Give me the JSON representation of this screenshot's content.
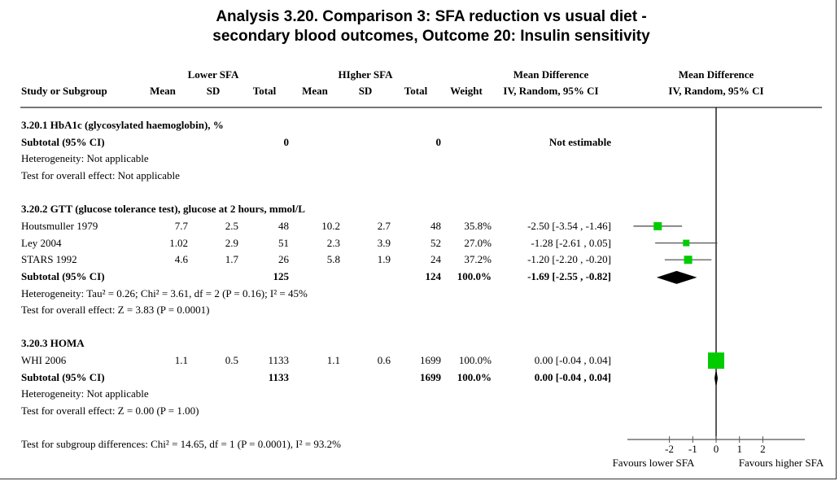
{
  "title": {
    "line1": "Analysis 3.20.   Comparison 3: SFA reduction vs usual diet -",
    "line2": "secondary blood outcomes, Outcome 20: Insulin sensitivity"
  },
  "header": {
    "group_lower": "Lower SFA",
    "group_higher": "HIgher SFA",
    "md_left": "Mean Difference",
    "md_right": "Mean Difference",
    "study": "Study or Subgroup",
    "mean1": "Mean",
    "sd1": "SD",
    "total1": "Total",
    "mean2": "Mean",
    "sd2": "SD",
    "total2": "Total",
    "weight": "Weight",
    "ci_left": "IV, Random, 95% CI",
    "ci_right": "IV, Random, 95% CI"
  },
  "rows": [
    {
      "type": "group",
      "study": "3.20.1 HbA1c (glycosylated haemoglobin), %"
    },
    {
      "type": "subtotal",
      "study": "Subtotal (95% CI)",
      "ln": "0",
      "hn": "0",
      "ci": "Not estimable"
    },
    {
      "type": "note",
      "study": "Heterogeneity: Not applicable"
    },
    {
      "type": "note",
      "study": "Test for overall effect: Not applicable"
    },
    {
      "type": "blank"
    },
    {
      "type": "group",
      "study": "3.20.2 GTT (glucose tolerance test), glucose at 2 hours, mmol/L"
    },
    {
      "type": "study",
      "study": "Houtsmuller 1979",
      "lm": "7.7",
      "lsd": "2.5",
      "ln": "48",
      "hm": "10.2",
      "hsd": "2.7",
      "hn": "48",
      "weight": "35.8%",
      "ci": "-2.50 [-3.54 , -1.46]"
    },
    {
      "type": "study",
      "study": "Ley 2004",
      "lm": "1.02",
      "lsd": "2.9",
      "ln": "51",
      "hm": "2.3",
      "hsd": "3.9",
      "hn": "52",
      "weight": "27.0%",
      "ci": "-1.28 [-2.61 , 0.05]"
    },
    {
      "type": "study",
      "study": "STARS 1992",
      "lm": "4.6",
      "lsd": "1.7",
      "ln": "26",
      "hm": "5.8",
      "hsd": "1.9",
      "hn": "24",
      "weight": "37.2%",
      "ci": "-1.20 [-2.20 , -0.20]"
    },
    {
      "type": "subtotal",
      "study": "Subtotal (95% CI)",
      "ln": "125",
      "hn": "124",
      "weight": "100.0%",
      "ci": "-1.69 [-2.55 , -0.82]"
    },
    {
      "type": "note",
      "study": "Heterogeneity: Tau² = 0.26; Chi² = 3.61, df = 2 (P = 0.16); I² = 45%"
    },
    {
      "type": "note",
      "study": "Test for overall effect: Z = 3.83 (P = 0.0001)"
    },
    {
      "type": "blank"
    },
    {
      "type": "group",
      "study": "3.20.3 HOMA"
    },
    {
      "type": "study",
      "study": "WHI 2006",
      "lm": "1.1",
      "lsd": "0.5",
      "ln": "1133",
      "hm": "1.1",
      "hsd": "0.6",
      "hn": "1699",
      "weight": "100.0%",
      "ci": "0.00 [-0.04 , 0.04]"
    },
    {
      "type": "subtotal",
      "study": "Subtotal (95% CI)",
      "ln": "1133",
      "hn": "1699",
      "weight": "100.0%",
      "ci": "0.00 [-0.04 , 0.04]"
    },
    {
      "type": "note",
      "study": "Heterogeneity: Not applicable"
    },
    {
      "type": "note",
      "study": "Test for overall effect: Z = 0.00 (P = 1.00)"
    },
    {
      "type": "blank"
    },
    {
      "type": "note",
      "study": "Test for subgroup differences: Chi² = 14.65, df = 1 (P = 0.0001), I² = 93.2%"
    }
  ],
  "chart_data": {
    "type": "forest",
    "xlim": [
      -3.8,
      3.8
    ],
    "xticks": [
      "-2",
      "-1",
      "0",
      "1",
      "2"
    ],
    "xtick_values": [
      -2,
      -1,
      0,
      1,
      2
    ],
    "xlabel_left": "Favours lower SFA",
    "xlabel_right": "Favours higher SFA",
    "colors": {
      "study": "#00cc00",
      "diamond": "#000000"
    },
    "points": [
      {
        "study": "Houtsmuller 1979",
        "md": -2.5,
        "lo": -3.54,
        "hi": -1.46,
        "weight": 35.8,
        "row": 6
      },
      {
        "study": "Ley 2004",
        "md": -1.28,
        "lo": -2.61,
        "hi": 0.05,
        "weight": 27.0,
        "row": 7
      },
      {
        "study": "STARS 1992",
        "md": -1.2,
        "lo": -2.2,
        "hi": -0.2,
        "weight": 37.2,
        "row": 8
      },
      {
        "study": "WHI 2006",
        "md": 0.0,
        "lo": -0.04,
        "hi": 0.04,
        "weight": 100.0,
        "row": 14
      }
    ],
    "diamonds": [
      {
        "subgroup": "3.20.2",
        "md": -1.69,
        "lo": -2.55,
        "hi": -0.82,
        "row": 9
      },
      {
        "subgroup": "3.20.3",
        "md": 0.0,
        "lo": -0.04,
        "hi": 0.04,
        "row": 15
      }
    ]
  }
}
